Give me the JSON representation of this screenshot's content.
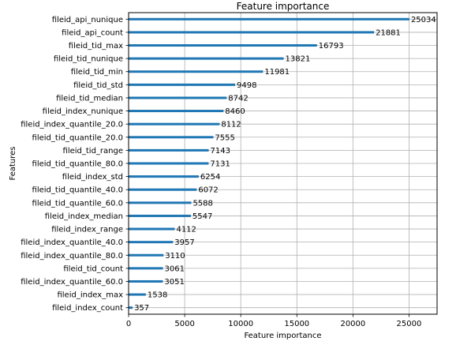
{
  "chart_data": {
    "type": "bar",
    "orientation": "horizontal",
    "title": "Feature importance",
    "xlabel": "Feature importance",
    "ylabel": "Features",
    "xlim": [
      0,
      27500
    ],
    "xticks": [
      0,
      5000,
      10000,
      15000,
      20000,
      25000
    ],
    "grid": true,
    "bar_color": "#1f77b4",
    "categories": [
      "fileid_api_nunique",
      "fileid_api_count",
      "fileid_tid_max",
      "fileid_tid_nunique",
      "fileid_tid_min",
      "fileid_tid_std",
      "fileid_tid_median",
      "fileid_index_nunique",
      "fileid_index_quantile_20.0",
      "fileid_tid_quantile_20.0",
      "fileid_tid_range",
      "fileid_tid_quantile_80.0",
      "fileid_index_std",
      "fileid_tid_quantile_40.0",
      "fileid_tid_quantile_60.0",
      "fileid_index_median",
      "fileid_index_range",
      "fileid_index_quantile_40.0",
      "fileid_index_quantile_80.0",
      "fileid_tid_count",
      "fileid_index_quantile_60.0",
      "fileid_index_max",
      "fileid_index_count"
    ],
    "values": [
      25034,
      21881,
      16793,
      13821,
      11981,
      9498,
      8742,
      8460,
      8112,
      7555,
      7143,
      7131,
      6254,
      6072,
      5588,
      5547,
      4112,
      3957,
      3110,
      3061,
      3051,
      1538,
      357
    ]
  }
}
